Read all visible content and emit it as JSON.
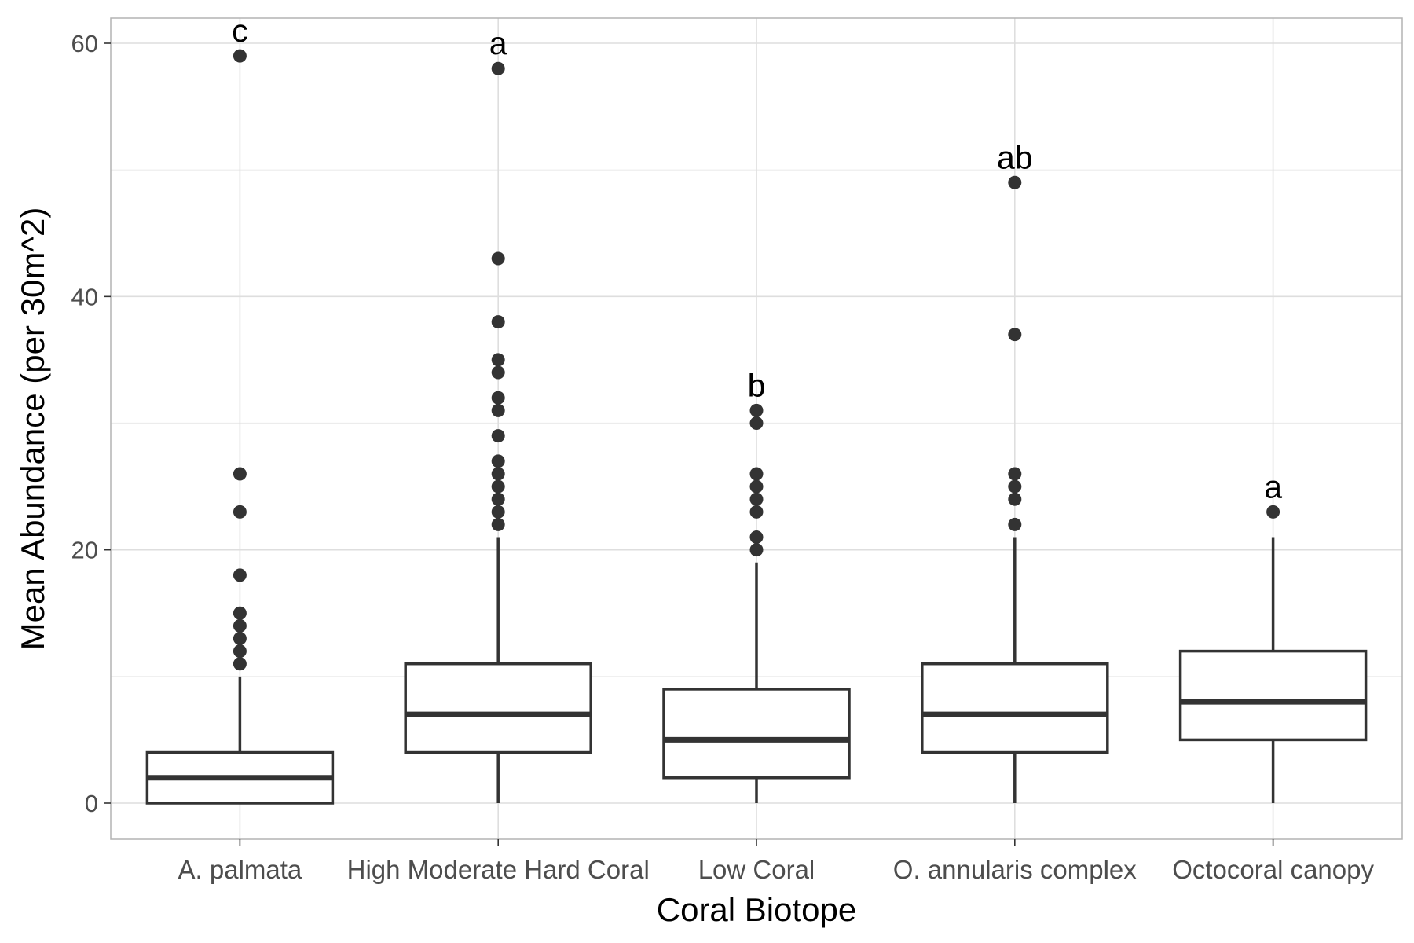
{
  "chart_data": {
    "type": "boxplot",
    "xlabel": "Coral Biotope",
    "ylabel": "Mean Abundance (per 30m^2)",
    "ylim": [
      -2.9,
      62
    ],
    "y_ticks": [
      0,
      20,
      40,
      60
    ],
    "y_tick_labels": [
      "0",
      "20",
      "40",
      "60"
    ],
    "grid": true,
    "legend": "none",
    "categories": [
      "A. palmata",
      "High Moderate Hard Coral",
      "Low Coral",
      "O. annularis complex",
      "Octocoral canopy"
    ],
    "boxes": [
      {
        "category": "A. palmata",
        "whisker_low": 0,
        "q1": 0,
        "median": 2,
        "q3": 4,
        "whisker_high": 10,
        "outliers": [
          11,
          12,
          13,
          14,
          15,
          18,
          23,
          26,
          59
        ],
        "letter": "c"
      },
      {
        "category": "High Moderate Hard Coral",
        "whisker_low": 0,
        "q1": 4,
        "median": 7,
        "q3": 11,
        "whisker_high": 21,
        "outliers": [
          22,
          23,
          24,
          25,
          26,
          27,
          29,
          31,
          32,
          34,
          35,
          38,
          43,
          58
        ],
        "letter": "a"
      },
      {
        "category": "Low Coral",
        "whisker_low": 0,
        "q1": 2,
        "median": 5,
        "q3": 9,
        "whisker_high": 19,
        "outliers": [
          20,
          21,
          23,
          24,
          25,
          26,
          30,
          31
        ],
        "letter": "b"
      },
      {
        "category": "O. annularis complex",
        "whisker_low": 0,
        "q1": 4,
        "median": 7,
        "q3": 11,
        "whisker_high": 21,
        "outliers": [
          22,
          24,
          25,
          26,
          37,
          49
        ],
        "letter": "ab"
      },
      {
        "category": "Octocoral canopy",
        "whisker_low": 0,
        "q1": 5,
        "median": 8,
        "q3": 12,
        "whisker_high": 21,
        "outliers": [
          23
        ],
        "letter": "a"
      }
    ],
    "colors": {
      "box_stroke": "#333333",
      "outlier_fill": "#333333",
      "grid_major": "#dedede",
      "grid_minor": "#ececec",
      "panel_border": "#b3b3b3",
      "tick_text": "#4d4d4d",
      "title_text": "#000000"
    }
  }
}
